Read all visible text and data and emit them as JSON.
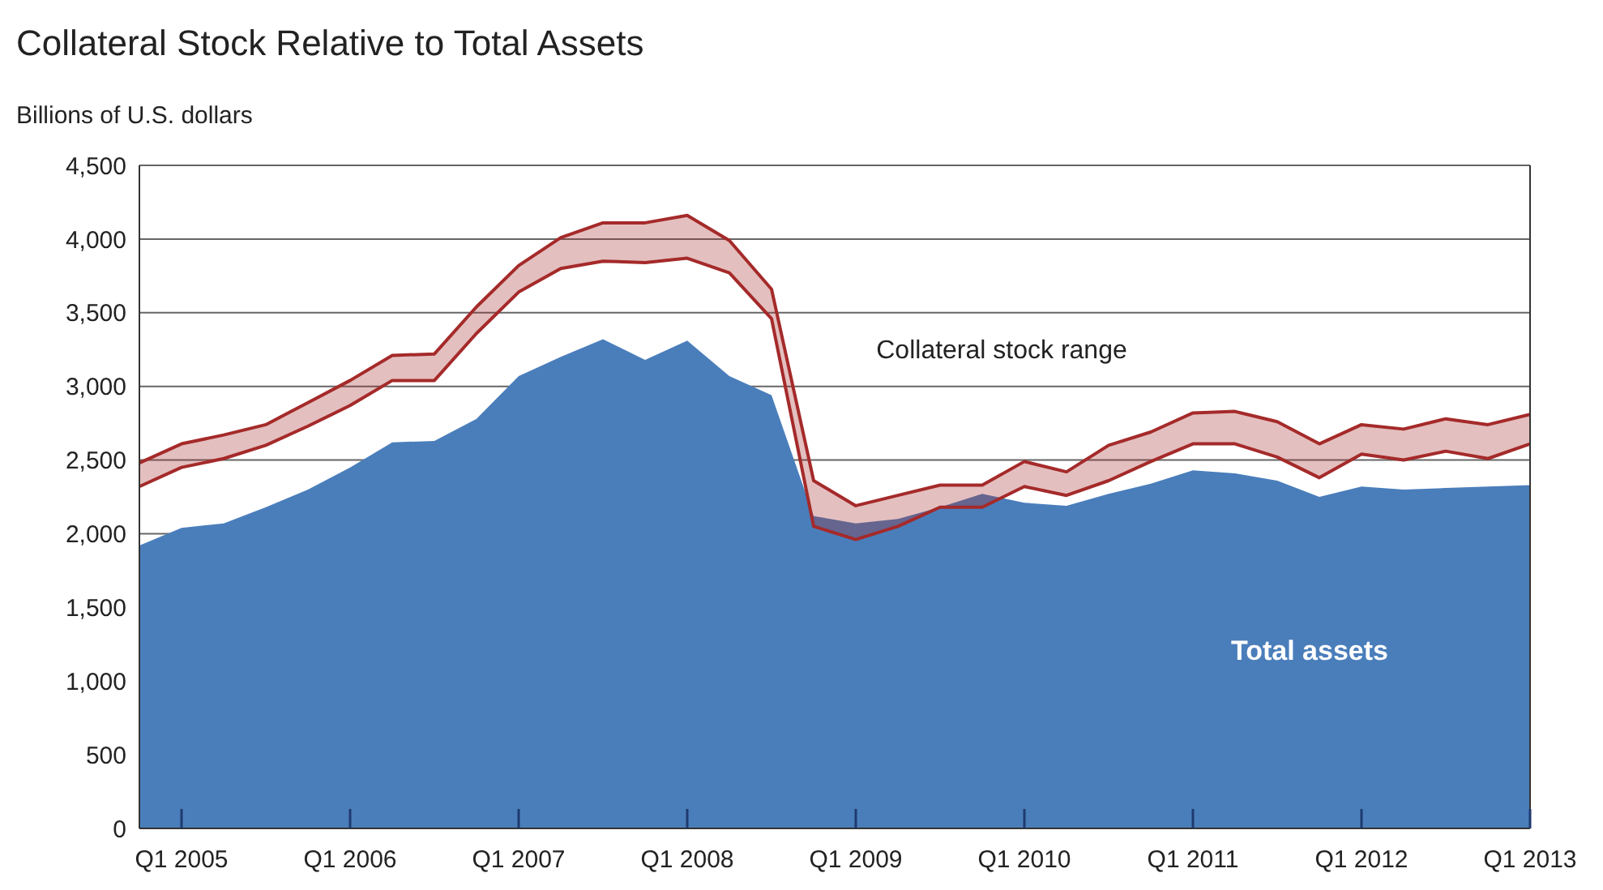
{
  "chart_data": {
    "type": "area",
    "title": "Collateral Stock Relative to Total Assets",
    "ylabel": "Billions of U.S. dollars",
    "categories": [
      null,
      "Q1 2005",
      null,
      null,
      null,
      "Q1 2006",
      null,
      null,
      null,
      "Q1 2007",
      null,
      null,
      null,
      "Q1 2008",
      null,
      null,
      null,
      "Q1 2009",
      null,
      null,
      null,
      "Q1 2010",
      null,
      null,
      null,
      "Q1 2011",
      null,
      null,
      null,
      "Q1 2012",
      null,
      null,
      null,
      "Q1 2013"
    ],
    "series": [
      {
        "name": "Total assets",
        "color": "#4a7ebb",
        "values": [
          1920,
          2040,
          2070,
          2180,
          2300,
          2450,
          2620,
          2630,
          2780,
          3070,
          3200,
          3320,
          3180,
          3310,
          3070,
          2940,
          2120,
          2070,
          2100,
          2180,
          2270,
          2210,
          2190,
          2270,
          2340,
          2430,
          2410,
          2360,
          2250,
          2320,
          2300,
          2310,
          2320,
          2330
        ]
      },
      {
        "name": "Collateral stock range",
        "type": "line",
        "color": "#a52a2a",
        "values": [
          2480,
          2610,
          2670,
          2740,
          2890,
          3040,
          3210,
          3220,
          3540,
          3820,
          4010,
          4110,
          4110,
          4160,
          3990,
          3660,
          2360,
          2190,
          2260,
          2330,
          2330,
          2490,
          2420,
          2600,
          2690,
          2820,
          2830,
          2760,
          2610,
          2740,
          2710,
          2780,
          2740,
          2810
        ],
        "lower": [
          2320,
          2450,
          2510,
          2600,
          2730,
          2870,
          3040,
          3040,
          3360,
          3640,
          3800,
          3850,
          3840,
          3870,
          3770,
          3460,
          2050,
          1960,
          2050,
          2180,
          2180,
          2320,
          2260,
          2360,
          2490,
          2610,
          2610,
          2520,
          2380,
          2540,
          2500,
          2560,
          2510,
          2610
        ],
        "upper": [
          2480,
          2610,
          2670,
          2740,
          2890,
          3040,
          3210,
          3220,
          3540,
          3820,
          4010,
          4110,
          4110,
          4160,
          3990,
          3660,
          2360,
          2190,
          2260,
          2330,
          2330,
          2490,
          2420,
          2600,
          2690,
          2820,
          2830,
          2760,
          2610,
          2740,
          2710,
          2780,
          2740,
          2810
        ]
      },
      {
        "type": "line",
        "color": "#a52a2a",
        "values": [
          2320,
          2450,
          2510,
          2600,
          2730,
          2870,
          3040,
          3040,
          3360,
          3640,
          3800,
          3850,
          3840,
          3870,
          3770,
          3460,
          2050,
          1960,
          2050,
          2180,
          2180,
          2320,
          2260,
          2360,
          2490,
          2610,
          2610,
          2520,
          2380,
          2540,
          2500,
          2560,
          2510,
          2610
        ]
      }
    ],
    "ylim": [
      0,
      4500
    ],
    "yticks": [
      0,
      {
        "value": 500,
        "label": "500"
      },
      {
        "value": 1000,
        "label": "1,000"
      },
      {
        "value": 1500,
        "label": "1,500"
      },
      {
        "value": 2000,
        "label": "2,000"
      },
      {
        "value": 2500,
        "label": "2,500"
      },
      {
        "value": 3000,
        "label": "3,000"
      },
      {
        "value": 3500,
        "label": "3,500"
      },
      {
        "value": 4000,
        "label": "4,000"
      },
      {
        "value": 4500,
        "label": "4,500"
      }
    ],
    "grid": "y",
    "legend": false
  }
}
